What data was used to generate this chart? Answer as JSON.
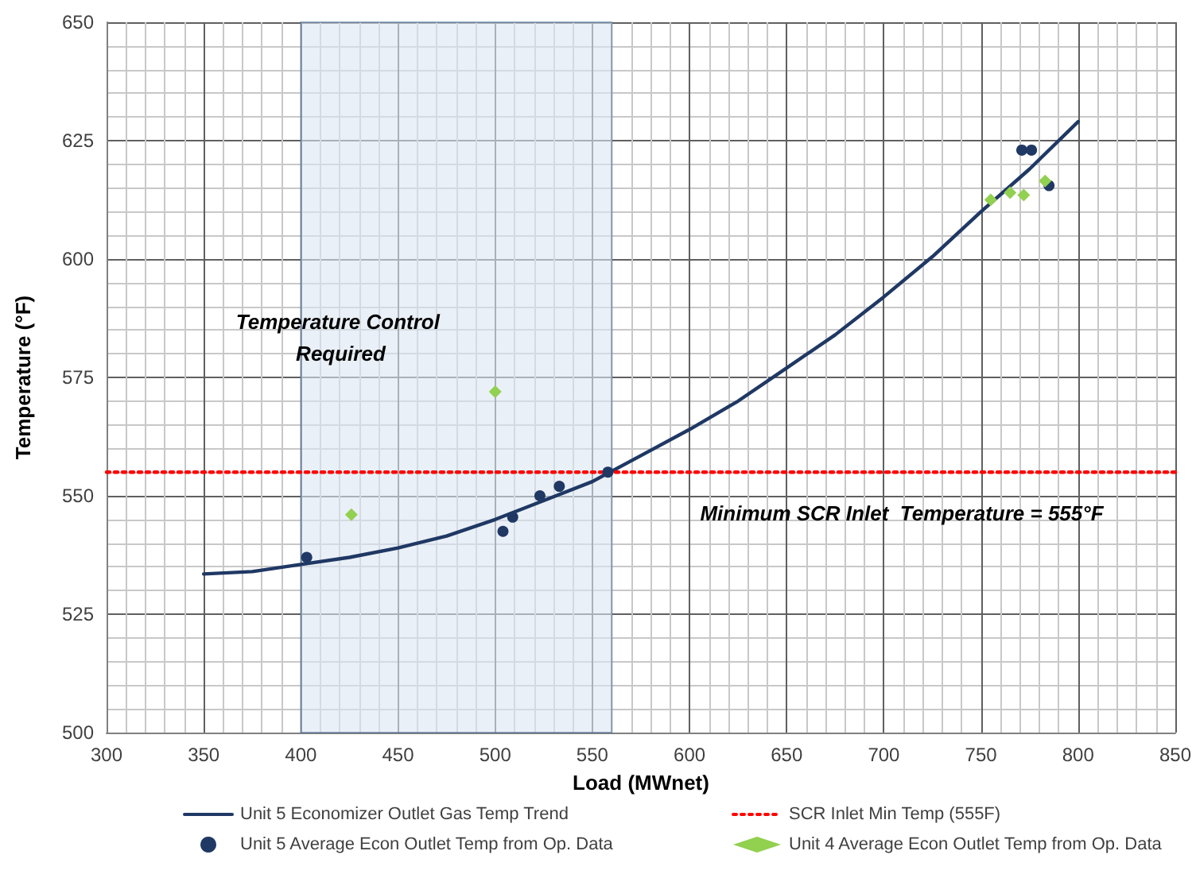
{
  "chart_data": {
    "type": "scatter",
    "xlabel": "Load (MWnet)",
    "ylabel": "Temperature (°F)",
    "xlim": [
      300,
      850
    ],
    "xticks": [
      300,
      350,
      400,
      450,
      500,
      550,
      600,
      650,
      700,
      750,
      800,
      850
    ],
    "ylim": [
      500,
      650
    ],
    "yticks": [
      500,
      525,
      550,
      575,
      600,
      625,
      650
    ],
    "grid": true,
    "legend": "bottom",
    "series": [
      {
        "name": "Unit 5 Economizer Outlet Gas Temp Trend",
        "type": "line",
        "marker": "none",
        "line_style": "solid",
        "color": "#1f3864",
        "x": [
          350,
          375,
          400,
          425,
          450,
          475,
          500,
          525,
          550,
          575,
          600,
          625,
          650,
          675,
          700,
          725,
          750,
          775,
          800
        ],
        "values": [
          533.5,
          534,
          535.5,
          537,
          539,
          541.5,
          545,
          549,
          553,
          558.5,
          564,
          570,
          577,
          584,
          592,
          600.5,
          610,
          619,
          629
        ]
      },
      {
        "name": "SCR Inlet Min Temp (555F)",
        "type": "line",
        "marker": "none",
        "line_style": "dotted",
        "color": "#ff0000",
        "x": [
          300,
          850
        ],
        "values": [
          555,
          555
        ]
      },
      {
        "name": "Unit 5 Average Econ Outlet Temp from Op. Data",
        "marker": "circle",
        "color": "#1f3864",
        "x": [
          403,
          504,
          509,
          523,
          533,
          558,
          771,
          776,
          785
        ],
        "values": [
          537,
          542.5,
          545.5,
          550,
          552,
          555,
          623,
          623,
          615.5
        ]
      },
      {
        "name": "Unit 4 Average Econ Outlet Temp from Op. Data",
        "marker": "diamond",
        "color": "#92d050",
        "x": [
          426,
          500,
          755,
          765,
          772,
          773,
          783
        ],
        "values": [
          546,
          572,
          612.5,
          614,
          613.5,
          null,
          616.5
        ]
      }
    ],
    "bands": [
      {
        "axis": "x",
        "from": 400,
        "to": 560,
        "label": "Temperature Control Required",
        "color": "#dce6f2"
      }
    ],
    "annotations": [
      "Minimum SCR Inlet  Temperature = 555°F"
    ]
  }
}
